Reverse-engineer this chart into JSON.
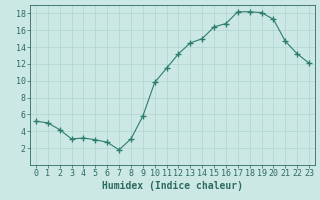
{
  "x": [
    0,
    1,
    2,
    3,
    4,
    5,
    6,
    7,
    8,
    9,
    10,
    11,
    12,
    13,
    14,
    15,
    16,
    17,
    18,
    19,
    20,
    21,
    22,
    23
  ],
  "y": [
    5.2,
    5.0,
    4.2,
    3.1,
    3.2,
    3.0,
    2.7,
    1.8,
    3.1,
    5.8,
    9.8,
    11.5,
    13.2,
    14.5,
    15.0,
    16.4,
    16.8,
    18.2,
    18.2,
    18.1,
    17.3,
    14.7,
    13.2,
    12.1
  ],
  "line_color": "#2d7d6f",
  "marker": "+",
  "marker_size": 4,
  "bg_color": "#cce8e4",
  "grid_color": "#b0d4cf",
  "xlabel": "Humidex (Indice chaleur)",
  "ylim": [
    0,
    19
  ],
  "xlim": [
    -0.5,
    23.5
  ],
  "yticks": [
    2,
    4,
    6,
    8,
    10,
    12,
    14,
    16,
    18
  ],
  "xticks": [
    0,
    1,
    2,
    3,
    4,
    5,
    6,
    7,
    8,
    9,
    10,
    11,
    12,
    13,
    14,
    15,
    16,
    17,
    18,
    19,
    20,
    21,
    22,
    23
  ],
  "tick_color": "#2d6b5f",
  "label_color": "#2d6b5f",
  "xlabel_fontsize": 7,
  "tick_fontsize": 6
}
